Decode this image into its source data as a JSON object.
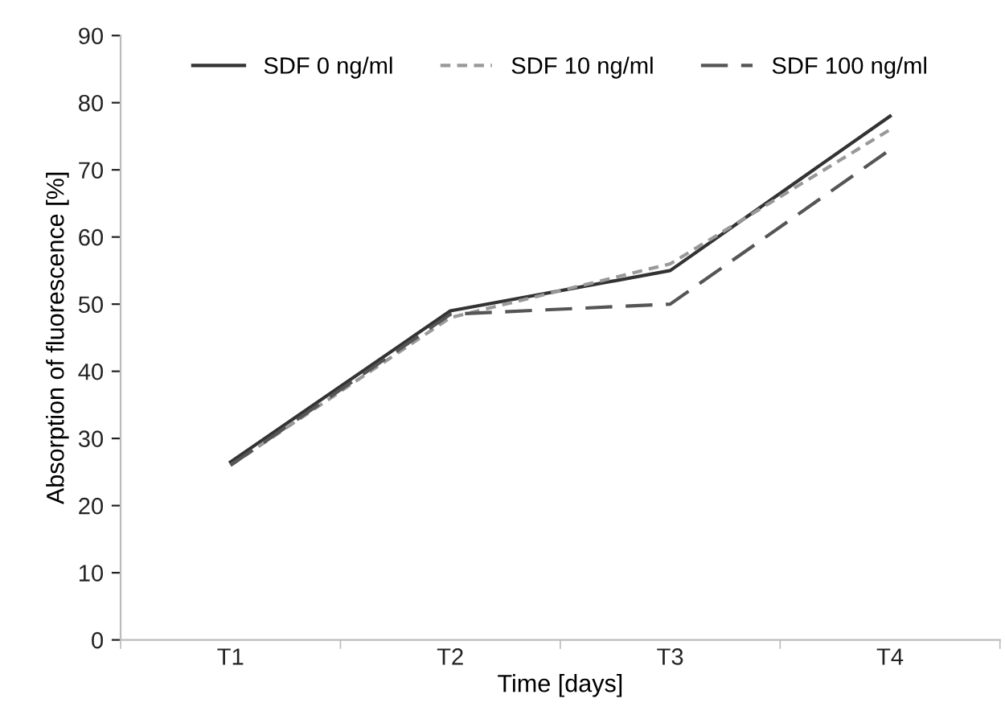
{
  "chart_data": {
    "type": "line",
    "xlabel": "Time [days]",
    "ylabel": "Absorption of fluorescence [%]",
    "categories": [
      "T1",
      "T2",
      "T3",
      "T4"
    ],
    "series": [
      {
        "name": "SDF 0 ng/ml",
        "color": "#333333",
        "line_style": "solid",
        "values": [
          26.5,
          49,
          55,
          78
        ]
      },
      {
        "name": "SDF 10 ng/ml",
        "color": "#999999",
        "line_style": "dotted",
        "values": [
          26,
          48,
          56,
          76
        ]
      },
      {
        "name": "SDF 100 ng/ml",
        "color": "#555555",
        "line_style": "dashed",
        "values": [
          26,
          48.5,
          50,
          73
        ]
      }
    ],
    "ylim": [
      0,
      90
    ],
    "yticks": [
      0,
      10,
      20,
      30,
      40,
      50,
      60,
      70,
      80,
      90
    ],
    "grid": false,
    "legend": "top",
    "marker": "none"
  }
}
